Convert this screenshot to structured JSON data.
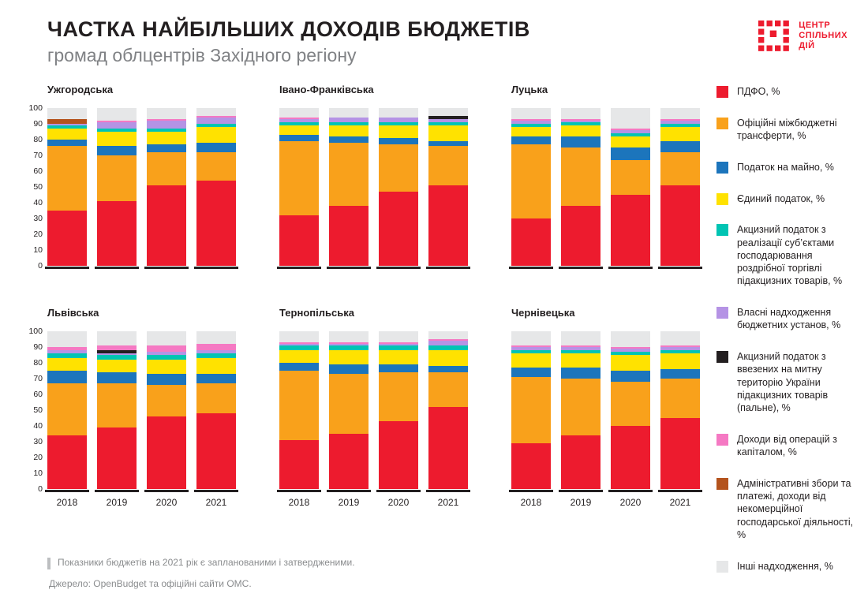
{
  "header": {
    "title_line1": "ЧАСТКА НАЙБІЛЬШИХ ДОХОДІВ БЮДЖЕТІВ",
    "title_line2": "громад облцентрів Західного регіону"
  },
  "logo": {
    "line1": "ЦЕНТР",
    "line2": "СПІЛЬНИХ",
    "line3": "ДІЙ",
    "color": "#ed1b2e"
  },
  "footnote": {
    "line1": "Показники бюджетів на 2021 рік є запланованими і затвердженими.",
    "line2": "Джерело: OpenBudget та офіційні сайти ОМС."
  },
  "chart_data": {
    "type": "bar",
    "stacked": true,
    "ylim": [
      0,
      100
    ],
    "yticks": [
      0,
      10,
      20,
      30,
      40,
      50,
      60,
      70,
      80,
      90,
      100
    ],
    "categories": [
      "2018",
      "2019",
      "2020",
      "2021"
    ],
    "legend": [
      {
        "name": "pdfo",
        "label": "ПДФО, %",
        "color": "#ed1b2e"
      },
      {
        "name": "transfers",
        "label": "Офіційні міжбюджетні трансферти, %",
        "color": "#f9a11b"
      },
      {
        "name": "property-tax",
        "label": "Податок на майно, %",
        "color": "#1c75bc"
      },
      {
        "name": "single-tax",
        "label": "Єдиний податок, %",
        "color": "#ffe200"
      },
      {
        "name": "excise-retail",
        "label": "Акцизний податок з реалізації суб’єктами господарювання роздрібної торгівлі підакцизних товарів, %",
        "color": "#00c4b3"
      },
      {
        "name": "own-revenues",
        "label": "Власні надходження бюджетних установ, %",
        "color": "#b593e5"
      },
      {
        "name": "excise-fuel",
        "label": "Акцизний податок з ввезених на митну територію України підакцизних товарів (пальне), %",
        "color": "#231f20"
      },
      {
        "name": "capital-ops",
        "label": "Доходи від операцій з капіталом, %",
        "color": "#f579c3"
      },
      {
        "name": "admin-fees",
        "label": "Адміністративні збори та платежі, доходи від некомерційної господарської діяльності, %",
        "color": "#b4531d"
      },
      {
        "name": "other",
        "label": "Інші надходження, %",
        "color": "#e6e7e8"
      }
    ],
    "charts": [
      {
        "title": "Ужгородська",
        "show_y_axis": true,
        "show_x_labels": false,
        "stacks": [
          [
            35,
            41,
            4,
            7,
            2,
            1,
            0,
            0,
            3,
            7
          ],
          [
            41,
            29,
            6,
            9,
            2,
            4,
            0,
            1,
            0,
            8
          ],
          [
            51,
            21,
            5,
            8,
            2,
            5,
            0,
            1,
            0,
            7
          ],
          [
            54,
            18,
            6,
            10,
            2,
            4,
            0,
            1,
            0,
            5
          ]
        ]
      },
      {
        "title": "Івано-Франківська",
        "show_y_axis": false,
        "show_x_labels": false,
        "stacks": [
          [
            32,
            47,
            4,
            6,
            2,
            2,
            0,
            1,
            0,
            6
          ],
          [
            38,
            40,
            4,
            7,
            2,
            3,
            0,
            0,
            0,
            6
          ],
          [
            47,
            30,
            4,
            8,
            2,
            3,
            0,
            0,
            0,
            6
          ],
          [
            51,
            25,
            3,
            10,
            2,
            2,
            2,
            0,
            0,
            5
          ]
        ]
      },
      {
        "title": "Луцька",
        "show_y_axis": false,
        "show_x_labels": false,
        "stacks": [
          [
            30,
            47,
            5,
            6,
            2,
            2,
            0,
            1,
            0,
            7
          ],
          [
            38,
            37,
            7,
            7,
            2,
            1,
            0,
            1,
            0,
            7
          ],
          [
            45,
            22,
            8,
            7,
            2,
            2,
            0,
            1,
            0,
            13
          ],
          [
            51,
            21,
            7,
            9,
            2,
            2,
            0,
            1,
            0,
            7
          ]
        ]
      },
      {
        "title": "Львівська",
        "show_y_axis": true,
        "show_x_labels": true,
        "stacks": [
          [
            34,
            33,
            8,
            8,
            3,
            2,
            0,
            2,
            0,
            10
          ],
          [
            39,
            28,
            7,
            8,
            3,
            1,
            2,
            3,
            0,
            9
          ],
          [
            46,
            20,
            7,
            9,
            3,
            2,
            0,
            4,
            0,
            9
          ],
          [
            48,
            19,
            6,
            10,
            3,
            2,
            0,
            4,
            0,
            8
          ]
        ]
      },
      {
        "title": "Тернопільська",
        "show_y_axis": false,
        "show_x_labels": true,
        "stacks": [
          [
            31,
            44,
            5,
            8,
            3,
            1,
            0,
            1,
            0,
            7
          ],
          [
            35,
            38,
            6,
            9,
            3,
            1,
            0,
            1,
            0,
            7
          ],
          [
            43,
            31,
            5,
            9,
            3,
            1,
            0,
            1,
            0,
            7
          ],
          [
            52,
            22,
            4,
            10,
            3,
            3,
            0,
            1,
            0,
            5
          ]
        ]
      },
      {
        "title": "Чернівецька",
        "show_y_axis": false,
        "show_x_labels": true,
        "stacks": [
          [
            29,
            42,
            6,
            9,
            2,
            2,
            0,
            1,
            0,
            9
          ],
          [
            34,
            36,
            7,
            9,
            2,
            2,
            0,
            1,
            0,
            9
          ],
          [
            40,
            28,
            7,
            10,
            2,
            2,
            0,
            1,
            0,
            10
          ],
          [
            45,
            25,
            6,
            10,
            2,
            2,
            0,
            1,
            0,
            9
          ]
        ]
      }
    ]
  }
}
